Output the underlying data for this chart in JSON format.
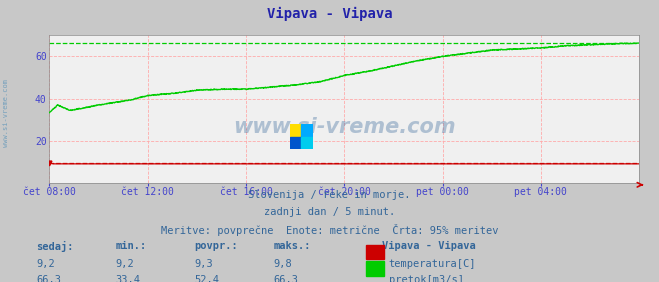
{
  "title": "Vipava - Vipava",
  "bg_color": "#c8c8c8",
  "plot_bg_color": "#f0f0f0",
  "grid_color": "#ffaaaa",
  "xlabel_color": "#4444cc",
  "ylabel_color": "#4444cc",
  "title_color": "#2222aa",
  "text_color": "#336699",
  "watermark": "www.si-vreme.com",
  "subtitle_lines": [
    "Slovenija / reke in morje.",
    "zadnji dan / 5 minut.",
    "Meritve: povprečne  Enote: metrične  Črta: 95% meritev"
  ],
  "xticklabels": [
    "čet 08:00",
    "čet 12:00",
    "čet 16:00",
    "čet 20:00",
    "pet 00:00",
    "pet 04:00"
  ],
  "xtick_positions": [
    0,
    240,
    480,
    720,
    960,
    1200
  ],
  "yticks": [
    20,
    40,
    60
  ],
  "ylim": [
    0,
    70
  ],
  "xlim": [
    0,
    1440
  ],
  "temp_color": "#cc0000",
  "flow_color": "#00cc00",
  "flow_max_line": 66.3,
  "temp_max_line": 9.8,
  "legend_title": "Vipava - Vipava",
  "legend_items": [
    {
      "label": "temperatura[C]",
      "color": "#cc0000"
    },
    {
      "label": "pretok[m3/s]",
      "color": "#00cc00"
    }
  ],
  "table_headers": [
    "sedaj:",
    "min.:",
    "povpr.:",
    "maks.:"
  ],
  "table_row1": [
    "9,2",
    "9,2",
    "9,3",
    "9,8"
  ],
  "table_row2": [
    "66,3",
    "33,4",
    "52,4",
    "66,3"
  ],
  "sidebar_text": "www.si-vreme.com",
  "sidebar_color": "#6699bb"
}
